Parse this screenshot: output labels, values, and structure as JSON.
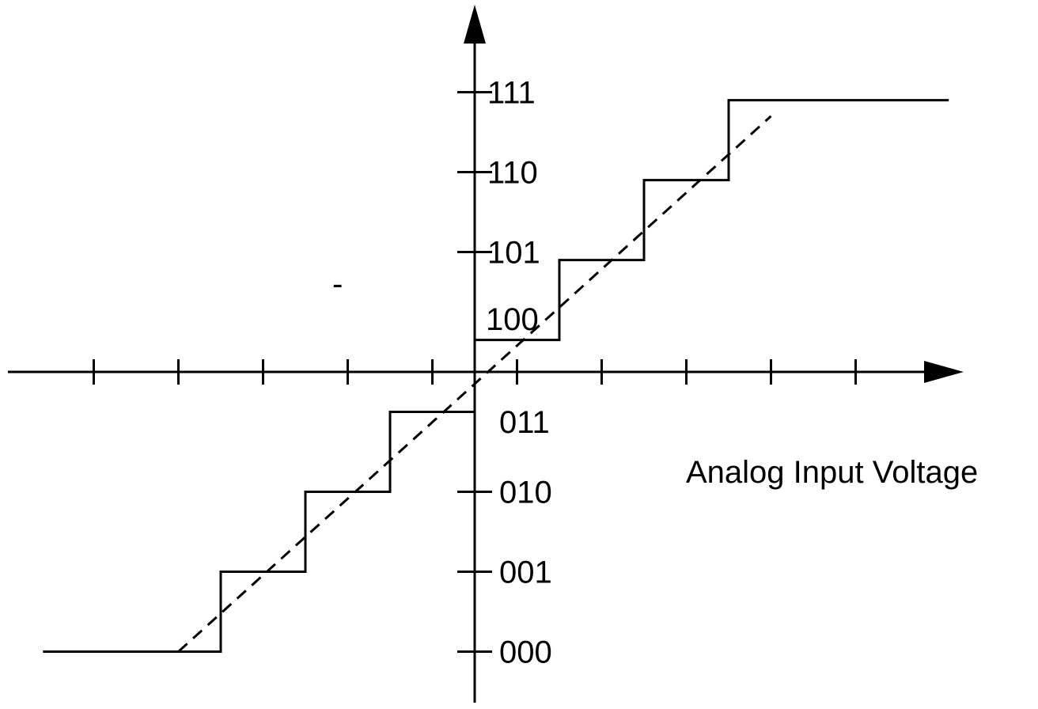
{
  "chart_data": {
    "type": "line",
    "title": "",
    "xlabel": "Analog Input Voltage",
    "ylabel": "",
    "y_tick_labels": [
      "000",
      "001",
      "010",
      "011",
      "100",
      "101",
      "110",
      "111"
    ],
    "stray_mark": "-",
    "x_ticks": [
      -4.5,
      -3.5,
      -2.5,
      -1.5,
      -0.5,
      0.5,
      1.5,
      2.5,
      3.5,
      4.5
    ],
    "ylim": [
      -4.5,
      3.3
    ],
    "xlim": [
      -5.6,
      5.8
    ],
    "series": [
      {
        "style": "solid",
        "points": [
          [
            -5.1,
            -3.5
          ],
          [
            -3.5,
            -3.5
          ],
          [
            -3.0,
            -3.5
          ],
          [
            -3.0,
            -2.5
          ],
          [
            -2.0,
            -2.5
          ],
          [
            -2.0,
            -1.5
          ],
          [
            -1.0,
            -1.5
          ],
          [
            -1.0,
            -0.5
          ],
          [
            0.0,
            -0.5
          ],
          [
            0.0,
            0.4
          ],
          [
            1.0,
            0.4
          ],
          [
            1.0,
            1.4
          ],
          [
            2.0,
            1.4
          ],
          [
            2.0,
            2.4
          ],
          [
            3.0,
            2.4
          ],
          [
            3.0,
            3.4
          ],
          [
            5.6,
            3.4
          ]
        ]
      },
      {
        "style": "dashed",
        "points": [
          [
            -3.5,
            -3.5
          ],
          [
            3.5,
            3.2
          ]
        ]
      }
    ]
  }
}
